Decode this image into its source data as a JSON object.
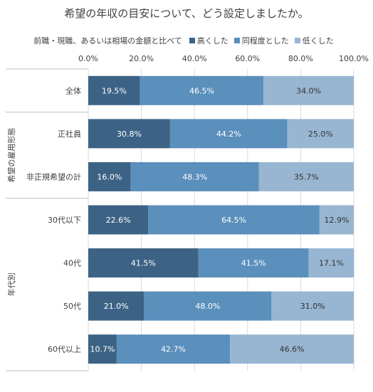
{
  "chart_data": {
    "type": "bar",
    "orientation": "horizontal",
    "stacked": true,
    "title": "希望の年収の目安について、どう設定しましたか。",
    "legend_prefix": "前職・現職、あるいは相場の金額と比べて",
    "legend_position": "top",
    "xlim": [
      0,
      100
    ],
    "x_ticks": [
      "0.0%",
      "20.0%",
      "40.0%",
      "60.0%",
      "80.0%",
      "100.0%"
    ],
    "grid": true,
    "groups": [
      {
        "label": "",
        "categories": [
          "全体"
        ]
      },
      {
        "label": "希望の雇用形態",
        "categories": [
          "正社員",
          "非正規希望の計"
        ]
      },
      {
        "label": "年代別",
        "categories": [
          "30代以下",
          "40代",
          "50代",
          "60代以上"
        ]
      }
    ],
    "categories": [
      "全体",
      "正社員",
      "非正規希望の計",
      "30代以下",
      "40代",
      "50代",
      "60代以上"
    ],
    "series": [
      {
        "name": "高くした",
        "color": "#3c6385",
        "values": [
          19.5,
          30.8,
          16.0,
          22.6,
          41.5,
          21.0,
          10.7
        ],
        "labels": [
          "19.5%",
          "30.8%",
          "16.0%",
          "22.6%",
          "41.5%",
          "21.0%",
          "10.7%"
        ]
      },
      {
        "name": "同程度とした",
        "color": "#5b8fbc",
        "values": [
          46.5,
          44.2,
          48.3,
          64.5,
          41.5,
          48.0,
          42.7
        ],
        "labels": [
          "46.5%",
          "44.2%",
          "48.3%",
          "64.5%",
          "41.5%",
          "48.0%",
          "42.7%"
        ]
      },
      {
        "name": "低くした",
        "color": "#98b6d2",
        "values": [
          34.0,
          25.0,
          35.7,
          12.9,
          17.1,
          31.0,
          46.6
        ],
        "labels": [
          "34.0%",
          "25.0%",
          "35.7%",
          "12.9%",
          "17.1%",
          "31.0%",
          "46.6%"
        ]
      }
    ]
  }
}
